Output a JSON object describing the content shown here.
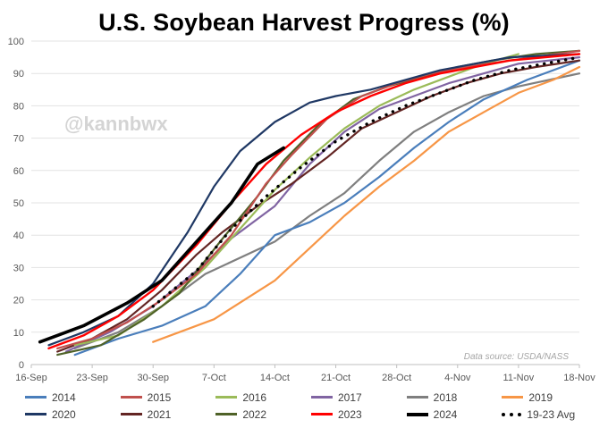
{
  "chart_data": {
    "type": "line",
    "title": "U.S. Soybean Harvest Progress (%)",
    "watermark": "@kannbwx",
    "source_note": "Data source: USDA/NASS",
    "xlabel": "",
    "ylabel": "",
    "x_tick_labels": [
      "16-Sep",
      "23-Sep",
      "30-Sep",
      "7-Oct",
      "14-Oct",
      "21-Oct",
      "28-Oct",
      "4-Nov",
      "11-Nov",
      "18-Nov"
    ],
    "y_ticks": [
      0,
      10,
      20,
      30,
      40,
      50,
      60,
      70,
      80,
      90,
      100
    ],
    "xlim": [
      0,
      63
    ],
    "ylim": [
      0,
      100
    ],
    "x_unit": "days since 16-Sep",
    "series": [
      {
        "name": "2014",
        "color": "#4a7ebb",
        "dash": "solid",
        "width": 2.2,
        "points": [
          [
            5,
            3
          ],
          [
            10,
            8
          ],
          [
            15,
            12
          ],
          [
            20,
            18
          ],
          [
            24,
            28
          ],
          [
            28,
            40
          ],
          [
            32,
            44
          ],
          [
            36,
            50
          ],
          [
            40,
            58
          ],
          [
            44,
            67
          ],
          [
            48,
            75
          ],
          [
            52,
            82
          ],
          [
            57,
            88
          ],
          [
            63,
            94
          ]
        ]
      },
      {
        "name": "2015",
        "color": "#c0504d",
        "dash": "solid",
        "width": 2.2,
        "points": [
          [
            3,
            5
          ],
          [
            7,
            8
          ],
          [
            11,
            13
          ],
          [
            15,
            20
          ],
          [
            19,
            28
          ],
          [
            23,
            40
          ],
          [
            27,
            56
          ],
          [
            30,
            65
          ],
          [
            34,
            76
          ],
          [
            38,
            83
          ],
          [
            42,
            87
          ],
          [
            46,
            90
          ],
          [
            50,
            92
          ],
          [
            55,
            94
          ],
          [
            63,
            97
          ]
        ]
      },
      {
        "name": "2016",
        "color": "#9bbb59",
        "dash": "solid",
        "width": 2.2,
        "points": [
          [
            5,
            6
          ],
          [
            10,
            9
          ],
          [
            15,
            18
          ],
          [
            20,
            30
          ],
          [
            24,
            42
          ],
          [
            28,
            54
          ],
          [
            32,
            64
          ],
          [
            36,
            73
          ],
          [
            40,
            80
          ],
          [
            44,
            85
          ],
          [
            48,
            89
          ],
          [
            52,
            93
          ],
          [
            56,
            96
          ]
        ]
      },
      {
        "name": "2017",
        "color": "#8064a2",
        "dash": "solid",
        "width": 2.2,
        "points": [
          [
            4,
            4
          ],
          [
            9,
            10
          ],
          [
            14,
            18
          ],
          [
            19,
            29
          ],
          [
            23,
            39
          ],
          [
            28,
            49
          ],
          [
            32,
            62
          ],
          [
            36,
            72
          ],
          [
            40,
            79
          ],
          [
            44,
            83
          ],
          [
            48,
            87
          ],
          [
            52,
            90
          ],
          [
            56,
            93
          ],
          [
            63,
            95
          ]
        ]
      },
      {
        "name": "2018",
        "color": "#7f7f7f",
        "dash": "solid",
        "width": 2.2,
        "points": [
          [
            5,
            5
          ],
          [
            10,
            10
          ],
          [
            15,
            18
          ],
          [
            20,
            28
          ],
          [
            24,
            33
          ],
          [
            28,
            38
          ],
          [
            32,
            46
          ],
          [
            36,
            53
          ],
          [
            40,
            63
          ],
          [
            44,
            72
          ],
          [
            48,
            78
          ],
          [
            52,
            83
          ],
          [
            56,
            86
          ],
          [
            63,
            90
          ]
        ]
      },
      {
        "name": "2019",
        "color": "#f79646",
        "dash": "solid",
        "width": 2.2,
        "points": [
          [
            14,
            7
          ],
          [
            21,
            14
          ],
          [
            28,
            26
          ],
          [
            32,
            36
          ],
          [
            36,
            46
          ],
          [
            40,
            55
          ],
          [
            44,
            63
          ],
          [
            48,
            72
          ],
          [
            52,
            78
          ],
          [
            56,
            84
          ],
          [
            60,
            88
          ],
          [
            63,
            92
          ]
        ]
      },
      {
        "name": "2020",
        "color": "#1f3864",
        "dash": "solid",
        "width": 2.2,
        "points": [
          [
            2,
            6
          ],
          [
            6,
            10
          ],
          [
            10,
            15
          ],
          [
            14,
            25
          ],
          [
            18,
            41
          ],
          [
            21,
            55
          ],
          [
            24,
            66
          ],
          [
            28,
            75
          ],
          [
            32,
            81
          ],
          [
            35,
            83
          ],
          [
            39,
            85
          ],
          [
            43,
            88
          ],
          [
            47,
            91
          ],
          [
            51,
            93
          ],
          [
            55,
            95
          ],
          [
            63,
            96
          ]
        ]
      },
      {
        "name": "2021",
        "color": "#632523",
        "dash": "solid",
        "width": 2.2,
        "points": [
          [
            3,
            4
          ],
          [
            7,
            8
          ],
          [
            11,
            14
          ],
          [
            15,
            23
          ],
          [
            19,
            34
          ],
          [
            22,
            41
          ],
          [
            26,
            49
          ],
          [
            30,
            56
          ],
          [
            34,
            64
          ],
          [
            38,
            73
          ],
          [
            42,
            78
          ],
          [
            46,
            83
          ],
          [
            50,
            87
          ],
          [
            54,
            90
          ],
          [
            58,
            92
          ],
          [
            63,
            94
          ]
        ]
      },
      {
        "name": "2022",
        "color": "#4f6228",
        "dash": "solid",
        "width": 2.2,
        "points": [
          [
            3,
            3
          ],
          [
            8,
            6
          ],
          [
            13,
            14
          ],
          [
            17,
            22
          ],
          [
            22,
            39
          ],
          [
            26,
            52
          ],
          [
            29,
            63
          ],
          [
            33,
            74
          ],
          [
            37,
            82
          ],
          [
            41,
            86
          ],
          [
            45,
            89
          ],
          [
            49,
            92
          ],
          [
            53,
            94
          ],
          [
            58,
            96
          ],
          [
            63,
            97
          ]
        ]
      },
      {
        "name": "2023",
        "color": "#ff0000",
        "dash": "solid",
        "width": 2.4,
        "points": [
          [
            2,
            5
          ],
          [
            6,
            9
          ],
          [
            10,
            15
          ],
          [
            14,
            23
          ],
          [
            19,
            37
          ],
          [
            23,
            50
          ],
          [
            27,
            62
          ],
          [
            31,
            71
          ],
          [
            35,
            78
          ],
          [
            39,
            83
          ],
          [
            43,
            87
          ],
          [
            47,
            90
          ],
          [
            51,
            92
          ],
          [
            55,
            94
          ],
          [
            63,
            96
          ]
        ]
      },
      {
        "name": "2024",
        "color": "#000000",
        "dash": "solid",
        "width": 3.6,
        "points": [
          [
            1,
            7
          ],
          [
            6,
            12
          ],
          [
            11,
            19
          ],
          [
            15,
            26
          ],
          [
            19,
            38
          ],
          [
            23,
            50
          ],
          [
            26,
            62
          ],
          [
            29,
            67
          ]
        ]
      },
      {
        "name": "19-23 Avg",
        "color": "#000000",
        "dash": "dotted",
        "width": 3.4,
        "points": [
          [
            14,
            18
          ],
          [
            19,
            29
          ],
          [
            23,
            42
          ],
          [
            27,
            52
          ],
          [
            31,
            61
          ],
          [
            35,
            69
          ],
          [
            39,
            75
          ],
          [
            43,
            80
          ],
          [
            47,
            84
          ],
          [
            51,
            88
          ],
          [
            55,
            91
          ],
          [
            59,
            93
          ],
          [
            63,
            95
          ]
        ]
      }
    ]
  }
}
